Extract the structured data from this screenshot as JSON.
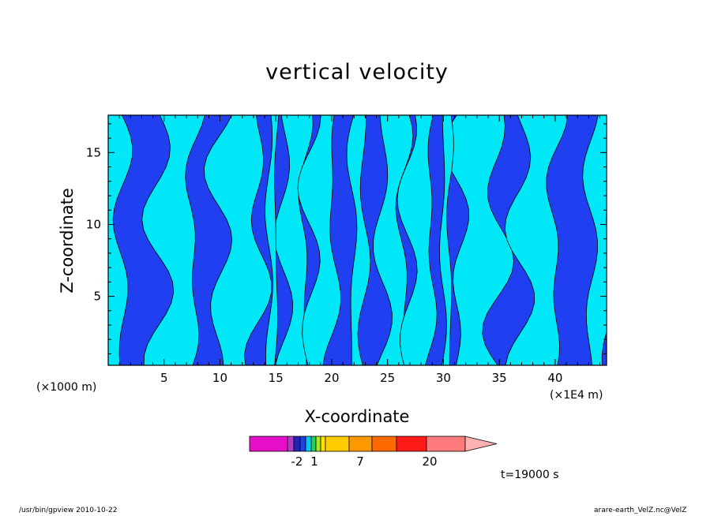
{
  "window": {
    "title": "vertical velocity"
  },
  "chart_data": {
    "type": "heatmap",
    "title": "vertical velocity",
    "xlabel": "X-coordinate",
    "ylabel": "Z-coordinate",
    "x_unit_left": "(×1000 m)",
    "x_unit_right": "(×1E4 m)",
    "xlim": [
      0,
      44.6
    ],
    "ylim": [
      0.2,
      17.6
    ],
    "x_ticks": [
      5,
      10,
      15,
      20,
      25,
      30,
      35,
      40
    ],
    "y_ticks": [
      5,
      10,
      15
    ],
    "grid": false,
    "legend": "colorbar-bottom",
    "colors": {
      "negative": "#1f3ff0",
      "positive": "#00e8f8",
      "frame": "#000000"
    },
    "colorbar": {
      "colors": [
        "#e60ec8",
        "#b03cc6",
        "#2222b4",
        "#1e40e8",
        "#00c8f0",
        "#20d060",
        "#a8e820",
        "#ffe000",
        "#ffcc00",
        "#ff9900",
        "#ff6a00",
        "#ff1a1a",
        "#ff7a7a",
        "#ffb0b0"
      ],
      "tick_labels": [
        "-2",
        "1",
        "7",
        "20"
      ]
    },
    "time_label": "t=19000 s"
  },
  "footer": {
    "left": "/usr/bin/gpview   2010-10-22",
    "right": "arare-earth_VelZ.nc@VelZ"
  }
}
